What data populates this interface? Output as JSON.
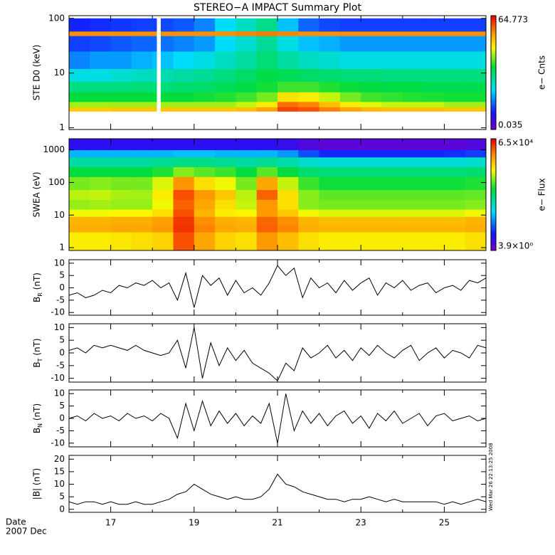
{
  "title": "STEREO−A IMPACT Summary Plot",
  "date_label": "Date",
  "month_label": "2007 Dec",
  "timestamp": "Wed Mar 26 22:13:25 2008",
  "x_axis": {
    "xlim": [
      16,
      26
    ],
    "xticks": [
      17,
      19,
      21,
      23,
      25
    ],
    "xminor": [
      16,
      18,
      20,
      22,
      24,
      26
    ]
  },
  "chart_data": [
    {
      "type": "heatmap",
      "ylabel": "STE D0 (keV)",
      "log": true,
      "ylim": [
        0.93,
        112
      ],
      "yticks": [
        1,
        10,
        100
      ],
      "zlabel": "e− Cnts",
      "zlim": [
        0.035,
        64.773
      ],
      "zticks": [
        0.035,
        64.773
      ],
      "x_edges": [
        16,
        16.5,
        17,
        17.5,
        18,
        18.1,
        18.2,
        18.5,
        19,
        19.5,
        20,
        20.5,
        21,
        21.5,
        22,
        22.5,
        23,
        23.5,
        24,
        24.5,
        25,
        25.5,
        26
      ],
      "y_edges": [
        2,
        2.4,
        3,
        4.5,
        7,
        12,
        25,
        48,
        58,
        100
      ],
      "z": [
        [
          12,
          12,
          13,
          13,
          13,
          null,
          13,
          13,
          13,
          13,
          14,
          18,
          40,
          35,
          25,
          18,
          15,
          14,
          14,
          14,
          13,
          13
        ],
        [
          5,
          5,
          5,
          5,
          5,
          null,
          5,
          5,
          5,
          5,
          6,
          9,
          28,
          24,
          14,
          9,
          7,
          6,
          6,
          6,
          5,
          5
        ],
        [
          2.2,
          2.2,
          2.2,
          2.2,
          2.2,
          null,
          2.2,
          2.2,
          2.4,
          2.6,
          3,
          4,
          10,
          9,
          6,
          4,
          3,
          2.8,
          2.6,
          2.5,
          2.4,
          2.4
        ],
        [
          1.3,
          1.3,
          1.3,
          1.4,
          1.4,
          null,
          1.4,
          1.5,
          1.6,
          1.8,
          2,
          2.4,
          3,
          3,
          2.6,
          2.3,
          2.1,
          2,
          2,
          1.9,
          1.9,
          1.9
        ],
        [
          0.6,
          0.6,
          0.7,
          0.8,
          0.8,
          null,
          0.9,
          1,
          1.1,
          1.3,
          1.6,
          2,
          1.8,
          1.6,
          1.5,
          1.4,
          1.4,
          1.3,
          1.3,
          1.3,
          1.3,
          1.3
        ],
        [
          0.25,
          0.3,
          0.3,
          0.35,
          0.4,
          null,
          0.4,
          0.5,
          0.6,
          0.8,
          1,
          1.4,
          1,
          0.8,
          0.7,
          0.6,
          0.6,
          0.6,
          0.6,
          0.6,
          0.6,
          0.6
        ],
        [
          0.15,
          0.16,
          0.18,
          0.2,
          0.2,
          null,
          0.22,
          0.25,
          0.3,
          0.5,
          0.7,
          1.1,
          0.6,
          0.4,
          0.35,
          0.3,
          0.3,
          0.3,
          0.3,
          0.3,
          0.3,
          0.3
        ],
        [
          22,
          22,
          22,
          22,
          22,
          null,
          22,
          22,
          22,
          22,
          24,
          26,
          24,
          22,
          22,
          22,
          22,
          22,
          22,
          22,
          22,
          22
        ],
        [
          0.12,
          0.13,
          0.14,
          0.15,
          0.15,
          null,
          0.16,
          0.18,
          0.25,
          0.5,
          0.8,
          1.2,
          0.4,
          0.2,
          0.16,
          0.15,
          0.15,
          0.15,
          0.15,
          0.15,
          0.15,
          0.15
        ]
      ]
    },
    {
      "type": "heatmap",
      "ylabel": "SWEA (eV)",
      "log": true,
      "ylim": [
        0.82,
        2200
      ],
      "yticks": [
        1,
        10,
        100,
        1000
      ],
      "zlabel": "e− Flux",
      "zlim": [
        3.9,
        65000
      ],
      "zticks": [
        {
          "value": 3.9,
          "label": "3.9×10⁰"
        },
        {
          "value": 65000,
          "label": "6.5×10⁴"
        }
      ],
      "x_edges": [
        16,
        16.5,
        17,
        17.5,
        18,
        18.5,
        19,
        19.5,
        20,
        20.5,
        21,
        21.5,
        22,
        22.5,
        23,
        23.5,
        24,
        24.5,
        25,
        25.5,
        26
      ],
      "y_edges": [
        0.82,
        3,
        5,
        9,
        15,
        30,
        60,
        150,
        300,
        600,
        1000,
        2200
      ],
      "z": [
        [
          5000,
          5000,
          5500,
          6000,
          7000,
          30000,
          12000,
          7000,
          6000,
          14000,
          9000,
          6000,
          5000,
          5000,
          5000,
          5000,
          5000,
          5000,
          5000,
          6000
        ],
        [
          11000,
          11000,
          12000,
          12000,
          14000,
          40000,
          18000,
          12000,
          11000,
          25000,
          18000,
          11000,
          10000,
          10000,
          10000,
          10000,
          10000,
          10000,
          10000,
          11000
        ],
        [
          10000,
          10000,
          11000,
          11000,
          13000,
          38000,
          16000,
          11000,
          10000,
          24000,
          16000,
          10000,
          9000,
          9000,
          9000,
          9000,
          9000,
          9000,
          9000,
          10000
        ],
        [
          4000,
          4000,
          4500,
          4500,
          6000,
          30000,
          10000,
          5000,
          4500,
          14000,
          8000,
          4000,
          3500,
          3500,
          3500,
          3500,
          3500,
          3500,
          3500,
          4000
        ],
        [
          2200,
          2400,
          2200,
          2200,
          4000,
          25000,
          12000,
          6000,
          3000,
          14000,
          6000,
          2000,
          1800,
          1800,
          1800,
          1800,
          1800,
          1800,
          1800,
          2000
        ],
        [
          2800,
          3000,
          2500,
          2400,
          5000,
          30000,
          14000,
          8000,
          2800,
          25000,
          6000,
          2000,
          1500,
          1500,
          1500,
          1500,
          1500,
          1500,
          1500,
          1600
        ],
        [
          1800,
          2000,
          1800,
          1800,
          3500,
          15000,
          6000,
          4000,
          1800,
          12000,
          3000,
          1200,
          900,
          900,
          900,
          900,
          900,
          900,
          900,
          1000
        ],
        [
          800,
          800,
          800,
          800,
          1000,
          2000,
          1500,
          1200,
          800,
          1500,
          800,
          500,
          450,
          450,
          450,
          450,
          450,
          450,
          450,
          500
        ],
        [
          300,
          300,
          300,
          300,
          350,
          400,
          400,
          350,
          300,
          350,
          280,
          200,
          180,
          180,
          180,
          180,
          180,
          180,
          180,
          200
        ],
        [
          80,
          80,
          80,
          80,
          80,
          90,
          90,
          80,
          80,
          80,
          60,
          30,
          20,
          20,
          20,
          20,
          20,
          20,
          22,
          25
        ],
        [
          12,
          12,
          12,
          12,
          12,
          12,
          12,
          12,
          12,
          12,
          10,
          7,
          6,
          6,
          6,
          6,
          6,
          6,
          6,
          7
        ]
      ]
    },
    {
      "type": "line",
      "ylabel": "B",
      "ylabel_sub": "R",
      "ylabel_unit": " (nT)",
      "color": "#000000",
      "ylim": [
        -11.1,
        11.4
      ],
      "yticks": [
        -10,
        -5,
        0,
        5,
        10
      ],
      "x": [
        16,
        16.2,
        16.4,
        16.6,
        16.8,
        17,
        17.2,
        17.4,
        17.6,
        17.8,
        18,
        18.2,
        18.4,
        18.6,
        18.8,
        19,
        19.2,
        19.4,
        19.6,
        19.8,
        20,
        20.2,
        20.4,
        20.6,
        20.8,
        21,
        21.2,
        21.4,
        21.6,
        21.8,
        22,
        22.2,
        22.4,
        22.6,
        22.8,
        23,
        23.2,
        23.4,
        23.6,
        23.8,
        24,
        24.2,
        24.4,
        24.6,
        24.8,
        25,
        25.2,
        25.4,
        25.6,
        25.8,
        26
      ],
      "values": [
        -3,
        -2,
        -4,
        -3,
        -1,
        -2,
        1,
        0,
        2,
        1,
        3,
        0,
        2,
        -5,
        6,
        -8,
        5,
        1,
        4,
        -3,
        3,
        -2,
        0,
        -3,
        2,
        9,
        5,
        8,
        -4,
        4,
        0,
        2,
        -2,
        3,
        -1,
        2,
        4,
        -3,
        2,
        0,
        3,
        -1,
        1,
        2,
        -2,
        0,
        1,
        -1,
        3,
        2,
        4
      ]
    },
    {
      "type": "line",
      "ylabel": "B",
      "ylabel_sub": "T",
      "ylabel_unit": " (nT)",
      "color": "#000000",
      "ylim": [
        -11.5,
        11.5
      ],
      "yticks": [
        -10,
        -5,
        0,
        5,
        10
      ],
      "x": [
        16,
        16.2,
        16.4,
        16.6,
        16.8,
        17,
        17.2,
        17.4,
        17.6,
        17.8,
        18,
        18.2,
        18.4,
        18.6,
        18.8,
        19,
        19.2,
        19.4,
        19.6,
        19.8,
        20,
        20.2,
        20.4,
        20.6,
        20.8,
        21,
        21.2,
        21.4,
        21.6,
        21.8,
        22,
        22.2,
        22.4,
        22.6,
        22.8,
        23,
        23.2,
        23.4,
        23.6,
        23.8,
        24,
        24.2,
        24.4,
        24.6,
        24.8,
        25,
        25.2,
        25.4,
        25.6,
        25.8,
        26
      ],
      "values": [
        1,
        2,
        0,
        3,
        2,
        3,
        2,
        1,
        3,
        1,
        0,
        -1,
        0,
        5,
        -6,
        10,
        -10,
        4,
        -5,
        2,
        -3,
        1,
        -4,
        -6,
        -8,
        -11,
        -4,
        -7,
        2,
        -2,
        0,
        3,
        -2,
        1,
        -3,
        2,
        -1,
        3,
        0,
        -2,
        1,
        3,
        -3,
        0,
        2,
        -2,
        1,
        0,
        -2,
        3,
        2
      ]
    },
    {
      "type": "line",
      "ylabel": "B",
      "ylabel_sub": "N",
      "ylabel_unit": " (nT)",
      "color": "#000000",
      "ylim": [
        -11.5,
        11.5
      ],
      "yticks": [
        -10,
        -5,
        0,
        5,
        10
      ],
      "x": [
        16,
        16.2,
        16.4,
        16.6,
        16.8,
        17,
        17.2,
        17.4,
        17.6,
        17.8,
        18,
        18.2,
        18.4,
        18.6,
        18.8,
        19,
        19.2,
        19.4,
        19.6,
        19.8,
        20,
        20.2,
        20.4,
        20.6,
        20.8,
        21,
        21.2,
        21.4,
        21.6,
        21.8,
        22,
        22.2,
        22.4,
        22.6,
        22.8,
        23,
        23.2,
        23.4,
        23.6,
        23.8,
        24,
        24.2,
        24.4,
        24.6,
        24.8,
        25,
        25.2,
        25.4,
        25.6,
        25.8,
        26
      ],
      "values": [
        0,
        1,
        -1,
        2,
        0,
        1,
        -1,
        2,
        0,
        1,
        -1,
        2,
        0,
        -8,
        6,
        -5,
        7,
        -3,
        3,
        -2,
        2,
        -3,
        1,
        -2,
        6,
        -10,
        10,
        -5,
        3,
        -2,
        2,
        -3,
        1,
        3,
        -2,
        1,
        -4,
        2,
        -1,
        3,
        -2,
        0,
        2,
        -3,
        1,
        2,
        -1,
        0,
        1,
        -1,
        0
      ]
    },
    {
      "type": "line",
      "ylabel": "|B| (nT)",
      "color": "#000000",
      "ylim": [
        -1.2,
        21.5
      ],
      "yticks": [
        0,
        5,
        10,
        15,
        20
      ],
      "x": [
        16,
        16.2,
        16.4,
        16.6,
        16.8,
        17,
        17.2,
        17.4,
        17.6,
        17.8,
        18,
        18.2,
        18.4,
        18.6,
        18.8,
        19,
        19.2,
        19.4,
        19.6,
        19.8,
        20,
        20.2,
        20.4,
        20.6,
        20.8,
        21,
        21.2,
        21.4,
        21.6,
        21.8,
        22,
        22.2,
        22.4,
        22.6,
        22.8,
        23,
        23.2,
        23.4,
        23.6,
        23.8,
        24,
        24.2,
        24.4,
        24.6,
        24.8,
        25,
        25.2,
        25.4,
        25.6,
        25.8,
        26
      ],
      "values": [
        3,
        2,
        3,
        3,
        2,
        3,
        2,
        2,
        3,
        2,
        2,
        3,
        4,
        6,
        7,
        10,
        8,
        6,
        5,
        4,
        5,
        4,
        4,
        5,
        8,
        14,
        10,
        9,
        7,
        6,
        5,
        4,
        4,
        3,
        4,
        4,
        5,
        4,
        3,
        4,
        3,
        3,
        3,
        3,
        3,
        2,
        3,
        2,
        3,
        4,
        3
      ]
    }
  ]
}
